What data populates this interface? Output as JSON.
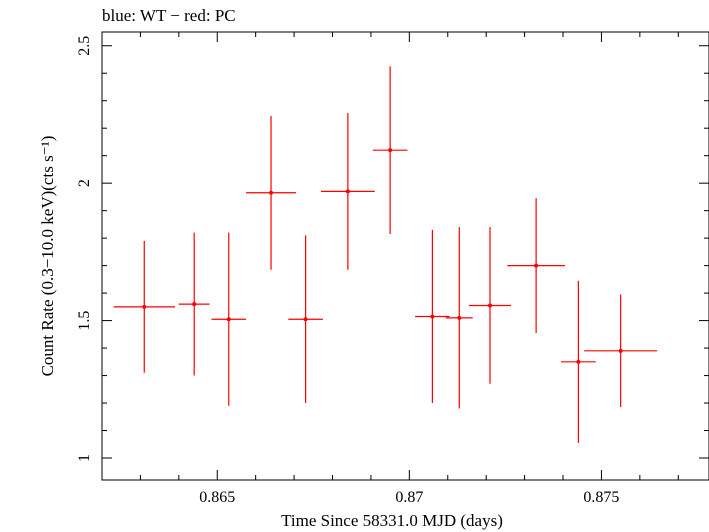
{
  "chart_data": {
    "type": "scatter",
    "title": "blue: WT − red: PC",
    "xlabel": "Time Since 58331.0 MJD (days)",
    "ylabel": "Count Rate (0.3−10.0 keV)(cts s⁻¹)",
    "xlim": [
      0.862,
      0.8778
    ],
    "ylim": [
      0.92,
      2.55
    ],
    "x_ticks": [
      0.865,
      0.87,
      0.875
    ],
    "x_tick_labels": [
      "0.865",
      "0.87",
      "0.875"
    ],
    "y_ticks": [
      1,
      1.5,
      2,
      2.5
    ],
    "y_tick_labels": [
      "1",
      "1.5",
      "2",
      "2.5"
    ],
    "series": [
      {
        "name": "PC",
        "color": "#ff0000",
        "points": [
          {
            "x": 0.8631,
            "xerr": 0.0008,
            "y": 1.55,
            "yerr": 0.24
          },
          {
            "x": 0.8644,
            "xerr": 0.0004,
            "y": 1.56,
            "yerr": 0.26
          },
          {
            "x": 0.8653,
            "xerr": 0.00045,
            "y": 1.505,
            "yerr": 0.315
          },
          {
            "x": 0.8664,
            "xerr": 0.00065,
            "y": 1.965,
            "yerr": 0.28
          },
          {
            "x": 0.8673,
            "xerr": 0.00045,
            "y": 1.505,
            "yerr": 0.305
          },
          {
            "x": 0.8684,
            "xerr": 0.0007,
            "y": 1.97,
            "yerr": 0.285
          },
          {
            "x": 0.8695,
            "xerr": 0.00045,
            "y": 2.12,
            "yerr": 0.305
          },
          {
            "x": 0.8706,
            "xerr": 0.00045,
            "y": 1.515,
            "yerr": 0.315
          },
          {
            "x": 0.8713,
            "xerr": 0.00035,
            "y": 1.51,
            "yerr": 0.33
          },
          {
            "x": 0.8721,
            "xerr": 0.00055,
            "y": 1.555,
            "yerr": 0.285
          },
          {
            "x": 0.8733,
            "xerr": 0.00075,
            "y": 1.7,
            "yerr": 0.245
          },
          {
            "x": 0.8744,
            "xerr": 0.00045,
            "y": 1.35,
            "yerr": 0.295
          },
          {
            "x": 0.8755,
            "xerr": 0.00095,
            "y": 1.39,
            "yerr": 0.205
          }
        ]
      }
    ]
  }
}
